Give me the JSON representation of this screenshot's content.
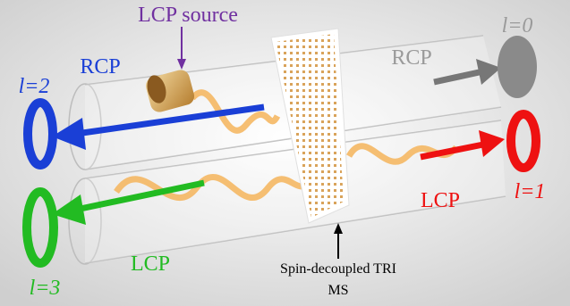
{
  "labels": {
    "source": "LCP source",
    "top_left_handedness": "RCP",
    "top_left_order": "l=2",
    "top_right_handedness": "RCP",
    "top_right_order": "l=0",
    "bottom_right_handedness": "LCP",
    "bottom_right_order": "l=1",
    "bottom_left_handedness": "LCP",
    "bottom_left_order": "l=3",
    "metasurface": [
      "Spin-decoupled TRI",
      "MS"
    ]
  }
}
